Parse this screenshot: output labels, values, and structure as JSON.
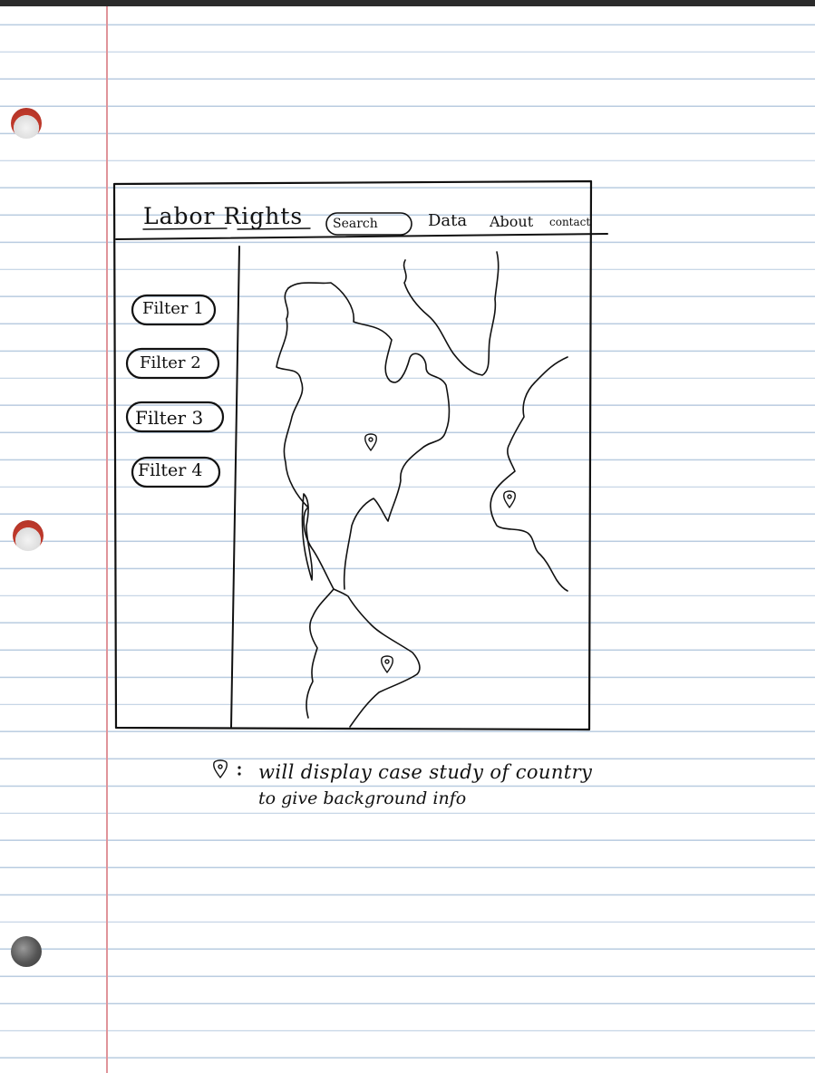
{
  "header": {
    "title": "Labor Rights",
    "search_label": "Search",
    "nav": [
      "Data",
      "About",
      "contact"
    ]
  },
  "sidebar": {
    "filters": [
      "Filter 1",
      "Filter 2",
      "Filter 3",
      "Filter 4"
    ]
  },
  "map": {
    "pins": [
      "pin-north-america",
      "pin-europe",
      "pin-south-america"
    ]
  },
  "note": {
    "pin_symbol": "map-pin-icon",
    "line1": "will display case study of country",
    "line2": "to give background info"
  },
  "colors": {
    "ink": "#111111",
    "rule_line": "#b9cce0",
    "margin_line": "#e0949a"
  }
}
